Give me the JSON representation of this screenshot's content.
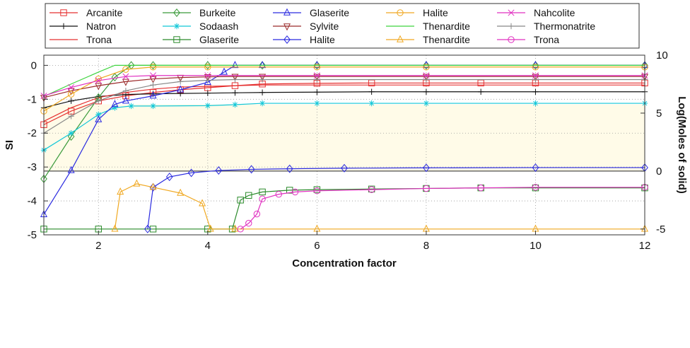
{
  "chart_data": {
    "type": "line",
    "title": "",
    "xlabel": "Concentration factor",
    "ylabel": "SI",
    "y2label": "Log(Moles of solid)",
    "xlim": [
      1,
      12
    ],
    "ylim": [
      -5,
      0.3
    ],
    "y2lim": [
      -5.5,
      10
    ],
    "xticks": [
      "2",
      "4",
      "6",
      "8",
      "10",
      "12"
    ],
    "yticks": [
      "0",
      "-1",
      "-2",
      "-3",
      "-4",
      "-5"
    ],
    "y2ticks": [
      "10",
      "5",
      "0",
      "-5"
    ],
    "grid": true,
    "legend_position": "top",
    "series": [
      {
        "name": "Arcanite",
        "axis": "left",
        "color": "#e53030",
        "marker": "square",
        "x": [
          1,
          1.5,
          2,
          2.5,
          3,
          3.5,
          4,
          4.5,
          5,
          6,
          7,
          8,
          9,
          10,
          12
        ],
        "y": [
          -1.75,
          -1.35,
          -1.05,
          -0.9,
          -0.8,
          -0.72,
          -0.66,
          -0.6,
          -0.55,
          -0.53,
          -0.52,
          -0.52,
          -0.52,
          -0.52,
          -0.52
        ]
      },
      {
        "name": "Natron",
        "axis": "left",
        "color": "#111111",
        "marker": "plus",
        "x": [
          1,
          1.5,
          2,
          2.5,
          3,
          3.5,
          4,
          4.5,
          5,
          6,
          7,
          8,
          9,
          10,
          12
        ],
        "y": [
          -1.25,
          -1.05,
          -0.92,
          -0.86,
          -0.84,
          -0.83,
          -0.82,
          -0.81,
          -0.8,
          -0.79,
          -0.78,
          -0.78,
          -0.78,
          -0.78,
          -0.78
        ]
      },
      {
        "name": "Trona",
        "axis": "left",
        "color": "#e53030",
        "marker": "none",
        "x": [
          1,
          1.5,
          2,
          2.5,
          3,
          3.5,
          4,
          4.5,
          5,
          6,
          7,
          8,
          9,
          10,
          12
        ],
        "y": [
          -1.65,
          -1.25,
          -0.95,
          -0.8,
          -0.7,
          -0.64,
          -0.62,
          -0.6,
          -0.58,
          -0.58,
          -0.58,
          -0.58,
          -0.58,
          -0.58,
          -0.58
        ]
      },
      {
        "name": "Burkeite",
        "axis": "left",
        "color": "#3a9a3a",
        "marker": "diamond",
        "x": [
          1,
          1.5,
          2,
          2.3,
          2.6,
          3,
          4,
          5,
          6,
          8,
          10,
          12
        ],
        "y": [
          -3.35,
          -2.1,
          -0.95,
          -0.35,
          0,
          0,
          0,
          0,
          0,
          0,
          0,
          0
        ]
      },
      {
        "name": "Sodaash",
        "axis": "left",
        "color": "#12c7d8",
        "marker": "asterisk",
        "x": [
          1,
          1.5,
          2,
          2.3,
          2.6,
          3,
          4,
          4.5,
          5,
          6,
          7,
          8,
          10,
          12
        ],
        "y": [
          -2.5,
          -2.0,
          -1.45,
          -1.25,
          -1.2,
          -1.2,
          -1.19,
          -1.16,
          -1.12,
          -1.12,
          -1.12,
          -1.12,
          -1.12,
          -1.12
        ]
      },
      {
        "name": "Glaserite",
        "axis": "left",
        "color": "#2a2ae0",
        "marker": "triangle-up",
        "x": [
          1,
          1.5,
          2,
          2.3,
          2.5,
          3,
          3.5,
          4,
          4.3,
          4.5,
          5,
          6,
          8,
          10,
          12
        ],
        "y": [
          -4.4,
          -3.1,
          -1.6,
          -1.15,
          -1.05,
          -0.9,
          -0.72,
          -0.5,
          -0.2,
          0,
          0,
          0,
          0,
          0,
          0
        ]
      },
      {
        "name": "Sylvite",
        "axis": "left",
        "color": "#9b2a2a",
        "marker": "triangle-down",
        "x": [
          1,
          1.5,
          2,
          2.5,
          3,
          3.5,
          4,
          4.5,
          5,
          6,
          8,
          10,
          12
        ],
        "y": [
          -0.95,
          -0.75,
          -0.6,
          -0.48,
          -0.4,
          -0.36,
          -0.34,
          -0.33,
          -0.33,
          -0.33,
          -0.33,
          -0.33,
          -0.33
        ]
      },
      {
        "name": "Halite",
        "axis": "left",
        "color": "#f0a820",
        "marker": "circle",
        "x": [
          1,
          1.5,
          2,
          2.5,
          3,
          4,
          6,
          8,
          10,
          12
        ],
        "y": [
          -1.35,
          -0.85,
          -0.4,
          -0.12,
          -0.05,
          -0.05,
          -0.05,
          -0.05,
          -0.05,
          -0.05
        ]
      },
      {
        "name": "Thenardite",
        "axis": "left",
        "color": "#3fd43f",
        "marker": "none",
        "x": [
          1,
          1.5,
          2,
          2.3,
          2.6,
          3,
          4,
          6,
          8,
          10,
          12
        ],
        "y": [
          -0.92,
          -0.55,
          -0.2,
          0,
          0,
          0,
          0,
          0,
          0,
          0,
          0
        ]
      },
      {
        "name": "Nahcolite",
        "axis": "left",
        "color": "#e030c0",
        "marker": "cross",
        "x": [
          1,
          1.5,
          2,
          2.5,
          3,
          4,
          6,
          8,
          10,
          12
        ],
        "y": [
          -0.9,
          -0.65,
          -0.45,
          -0.33,
          -0.3,
          -0.3,
          -0.3,
          -0.3,
          -0.3,
          -0.3
        ]
      },
      {
        "name": "Thermonatrite",
        "axis": "left",
        "color": "#888888",
        "marker": "plus",
        "x": [
          1,
          1.5,
          2,
          2.5,
          3,
          3.5,
          4,
          4.5,
          5,
          6,
          8,
          10,
          12
        ],
        "y": [
          -2.0,
          -1.5,
          -1.05,
          -0.75,
          -0.58,
          -0.48,
          -0.44,
          -0.42,
          -0.42,
          -0.42,
          -0.42,
          -0.42,
          -0.42
        ]
      },
      {
        "name": "Glaserite",
        "axis": "right",
        "color": "#2a8a2a",
        "marker": "square",
        "x": [
          1,
          2,
          3,
          4,
          4.45,
          4.6,
          4.75,
          5.0,
          5.5,
          6,
          7,
          8,
          9,
          10,
          12
        ],
        "y": [
          -5,
          -5,
          -5,
          -5,
          -5,
          -2.5,
          -2.1,
          -1.8,
          -1.65,
          -1.6,
          -1.55,
          -1.5,
          -1.45,
          -1.45,
          -1.45
        ]
      },
      {
        "name": "Halite",
        "axis": "right",
        "color": "#2a2ae0",
        "marker": "diamond",
        "x": [
          2.9,
          3.0,
          3.3,
          3.7,
          4.2,
          4.8,
          5.5,
          6.5,
          8,
          10,
          12
        ],
        "y": [
          -5,
          -1.4,
          -0.5,
          -0.15,
          0.05,
          0.15,
          0.2,
          0.25,
          0.28,
          0.3,
          0.3
        ]
      },
      {
        "name": "Thenardite",
        "axis": "right",
        "color": "#f0a820",
        "marker": "triangle-up",
        "x": [
          2.3,
          2.4,
          2.7,
          3.0,
          3.5,
          3.9,
          4.05,
          4.5,
          6,
          8,
          10,
          12
        ],
        "y": [
          -5,
          -1.8,
          -1.1,
          -1.4,
          -1.9,
          -2.8,
          -5,
          -5,
          -5,
          -5,
          -5,
          -5
        ]
      },
      {
        "name": "Trona",
        "axis": "right",
        "color": "#e030c0",
        "marker": "circle",
        "x": [
          4.6,
          4.75,
          4.9,
          5.0,
          5.3,
          5.6,
          6,
          7,
          8,
          9,
          10,
          12
        ],
        "y": [
          -5,
          -4.5,
          -3.7,
          -2.4,
          -2.0,
          -1.8,
          -1.7,
          -1.6,
          -1.5,
          -1.45,
          -1.4,
          -1.4
        ]
      }
    ]
  }
}
